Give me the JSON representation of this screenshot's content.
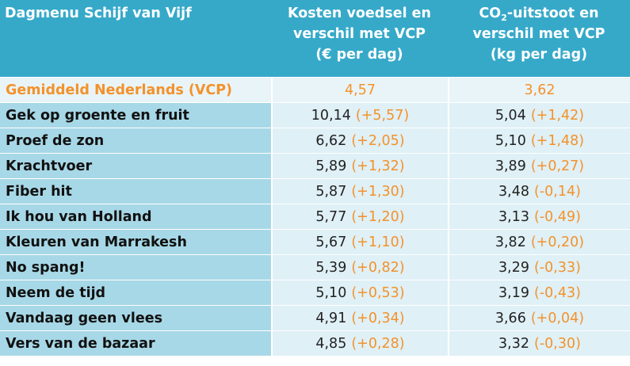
{
  "header": {
    "col1": "Dagmenu Schijf van Vijf",
    "col2_line1": "Kosten voedsel en",
    "col2_line2": "verschil met VCP",
    "col2_line3": "(€ per dag)",
    "col3_co": "CO",
    "col3_sub": "2",
    "col3_line1_rest": "-uitstoot en",
    "col3_line2": "verschil met VCP",
    "col3_line3": "(kg per dag)"
  },
  "rows": [
    {
      "name": "Gemiddeld Nederlands (VCP)",
      "cost": "4,57",
      "cost_diff": "",
      "co2": "3,62",
      "co2_diff": ""
    },
    {
      "name": "Gek op groente en fruit",
      "cost": "10,14",
      "cost_diff": "(+5,57)",
      "co2": "5,04",
      "co2_diff": "(+1,42)"
    },
    {
      "name": "Proef de zon",
      "cost": "6,62",
      "cost_diff": "(+2,05)",
      "co2": "5,10",
      "co2_diff": "(+1,48)"
    },
    {
      "name": "Krachtvoer",
      "cost": "5,89",
      "cost_diff": "(+1,32)",
      "co2": "3,89",
      "co2_diff": "(+0,27)"
    },
    {
      "name": "Fiber hit",
      "cost": "5,87",
      "cost_diff": "(+1,30)",
      "co2": "3,48",
      "co2_diff": "(-0,14)"
    },
    {
      "name": "Ik hou van Holland",
      "cost": "5,77",
      "cost_diff": "(+1,20)",
      "co2": "3,13",
      "co2_diff": "(-0,49)"
    },
    {
      "name": "Kleuren van Marrakesh",
      "cost": "5,67",
      "cost_diff": "(+1,10)",
      "co2": "3,82",
      "co2_diff": "(+0,20)"
    },
    {
      "name": "No spang!",
      "cost": "5,39",
      "cost_diff": "(+0,82)",
      "co2": "3,29",
      "co2_diff": "(-0,33)"
    },
    {
      "name": "Neem de tijd",
      "cost": "5,10",
      "cost_diff": "(+0,53)",
      "co2": "3,19",
      "co2_diff": "(-0,43)"
    },
    {
      "name": "Vandaag geen vlees",
      "cost": "4,91",
      "cost_diff": "(+0,34)",
      "co2": "3,66",
      "co2_diff": "(+0,04)"
    },
    {
      "name": "Vers van de bazaar",
      "cost": "4,85",
      "cost_diff": "(+0,28)",
      "co2": "3,32",
      "co2_diff": "(-0,30)"
    }
  ],
  "colors": {
    "header_bg": "#36a9c9",
    "name_bg": "#a7d8e7",
    "value_bg": "#dff0f6",
    "highlight": "#f3922b"
  }
}
